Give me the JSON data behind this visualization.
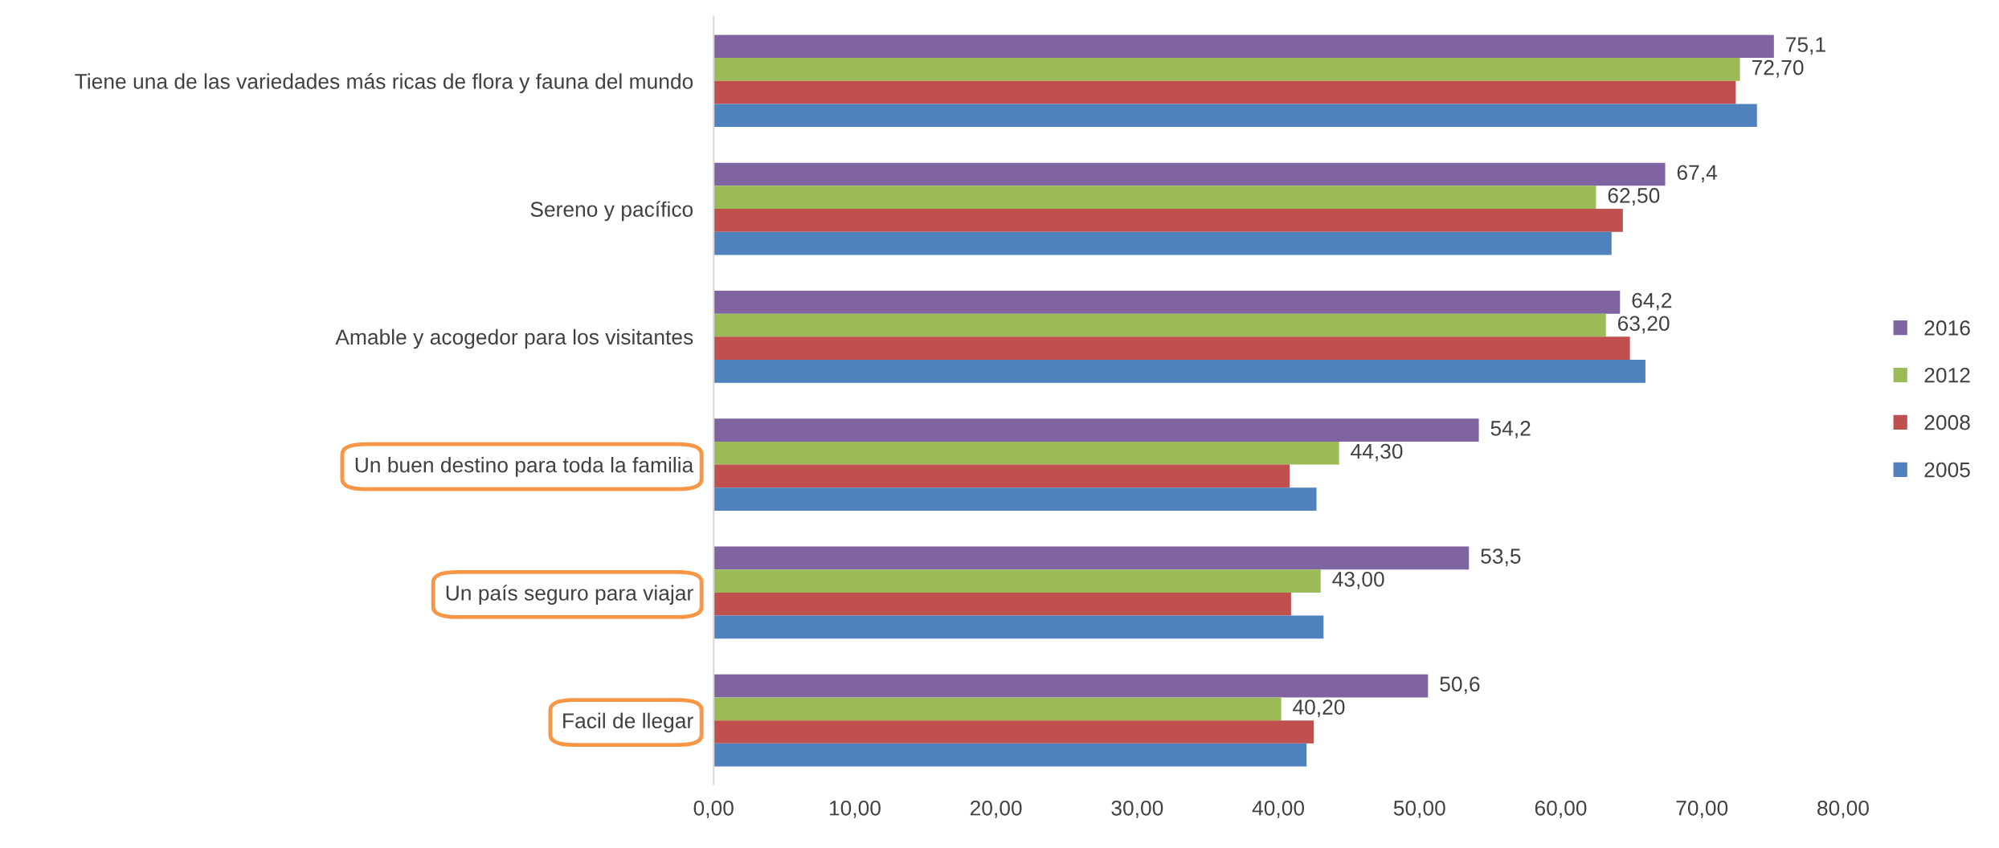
{
  "chart_data": {
    "type": "bar",
    "orientation": "horizontal",
    "categories": [
      "Tiene una de las variedades más ricas de flora y fauna del mundo",
      "Sereno y pacífico",
      "Amable y acogedor para los visitantes",
      "Un buen destino para toda la familia",
      "Un país seguro para viajar",
      "Facil de llegar"
    ],
    "series": [
      {
        "name": "2016",
        "color": "#8064a2",
        "values": [
          75.1,
          67.4,
          64.2,
          54.2,
          53.5,
          50.6
        ],
        "value_labels": [
          "75,1",
          "67,4",
          "64,2",
          "54,2",
          "53,5",
          "50,6"
        ]
      },
      {
        "name": "2012",
        "color": "#9bbb59",
        "values": [
          72.7,
          62.5,
          63.2,
          44.3,
          43.0,
          40.2
        ],
        "value_labels": [
          "72,70",
          "62,50",
          "63,20",
          "44,30",
          "43,00",
          "40,20"
        ]
      },
      {
        "name": "2008",
        "color": "#c0504d",
        "values": [
          72.4,
          64.4,
          64.9,
          40.8,
          40.9,
          42.5
        ]
      },
      {
        "name": "2005",
        "color": "#4f81bd",
        "values": [
          73.9,
          63.6,
          66.0,
          42.7,
          43.2,
          42.0
        ]
      }
    ],
    "xlim": [
      0,
      80
    ],
    "xticks": [
      {
        "value": 0,
        "label": "0,00"
      },
      {
        "value": 10,
        "label": "10,00"
      },
      {
        "value": 20,
        "label": "20,00"
      },
      {
        "value": 30,
        "label": "30,00"
      },
      {
        "value": 40,
        "label": "40,00"
      },
      {
        "value": 50,
        "label": "50,00"
      },
      {
        "value": 60,
        "label": "60,00"
      },
      {
        "value": 70,
        "label": "70,00"
      },
      {
        "value": 80,
        "label": "80,00"
      }
    ],
    "grid": false,
    "legend": "right"
  }
}
